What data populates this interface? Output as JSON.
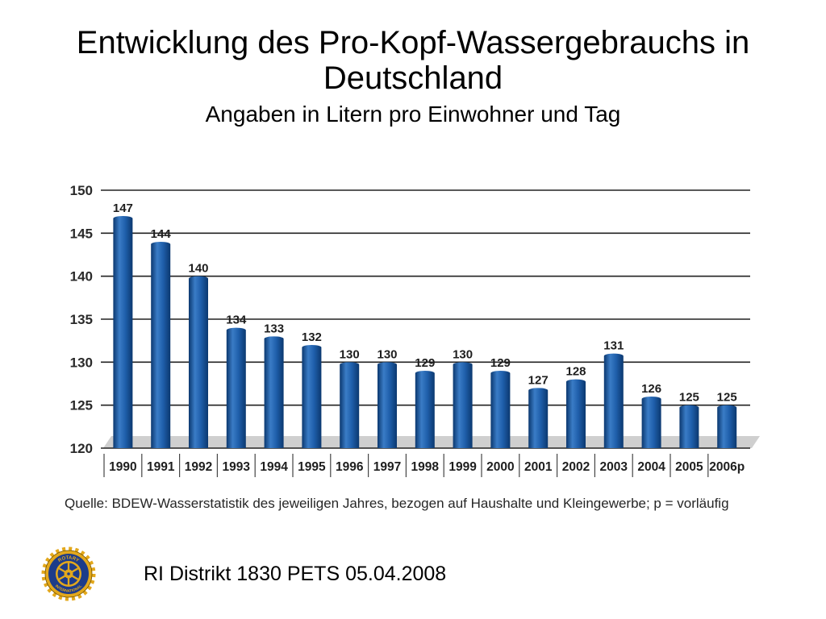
{
  "chart_data": {
    "type": "bar",
    "title": "Entwicklung des Pro-Kopf-Wassergebrauchs in Deutschland",
    "subtitle": "Angaben in Litern pro Einwohner und Tag",
    "categories": [
      "1990",
      "1991",
      "1992",
      "1993",
      "1994",
      "1995",
      "1996",
      "1997",
      "1998",
      "1999",
      "2000",
      "2001",
      "2002",
      "2003",
      "2004",
      "2005",
      "2006p"
    ],
    "values": [
      147,
      144,
      140,
      134,
      133,
      132,
      130,
      130,
      129,
      130,
      129,
      127,
      128,
      131,
      126,
      125,
      125
    ],
    "ylim": [
      120,
      150
    ],
    "yticks": [
      120,
      125,
      130,
      135,
      140,
      145,
      150
    ],
    "grid": true,
    "note": "Quelle: BDEW-Wasserstatistik des jeweiligen Jahres, bezogen auf Haushalte und Kleingewerbe; p = vorläufig",
    "colors": {
      "bar": "#1f5fab",
      "bar_light": "#3a7cc6",
      "bar_dark": "#0b386f",
      "grid": "#222222",
      "floor": "#cfcfcf"
    }
  },
  "footer": {
    "text": "RI Distrikt 1830 PETS 05.04.2008",
    "logo": {
      "icon": "rotary-wheel-logo",
      "lettering_top": "ROTARY",
      "lettering_bottom": "INTERNATIONAL",
      "colors": {
        "gold": "#e3a81c",
        "blue": "#1d3c8a",
        "outline": "#6e5000"
      }
    }
  }
}
